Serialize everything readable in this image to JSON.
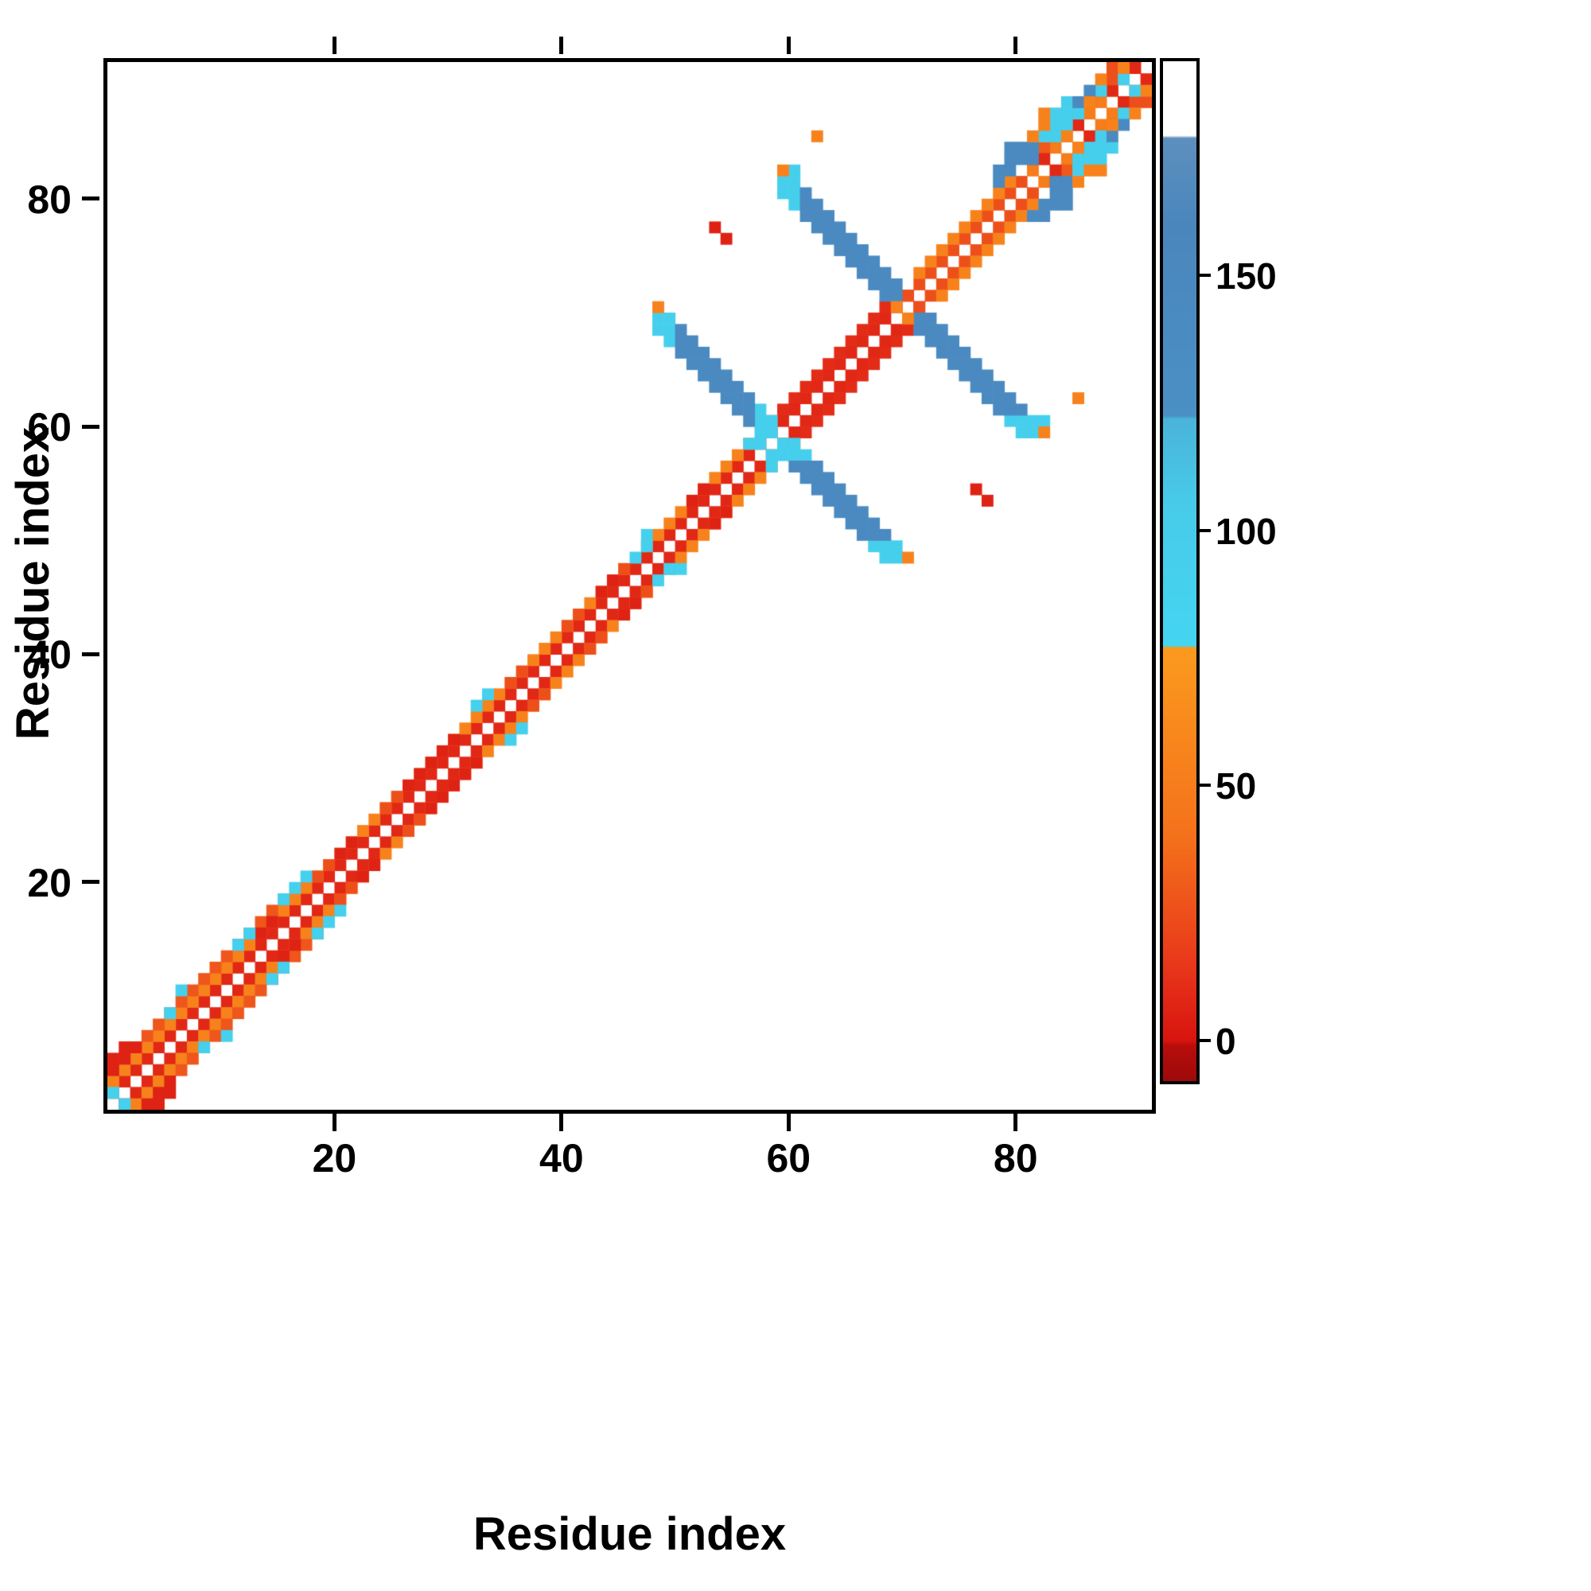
{
  "chart_data": {
    "type": "heatmap",
    "title": "",
    "xlabel": "Residue index",
    "ylabel": "Residue index",
    "x_range": [
      0,
      92
    ],
    "y_range": [
      0,
      92
    ],
    "x_ticks": [
      20,
      40,
      60,
      80
    ],
    "y_ticks": [
      20,
      40,
      60,
      80
    ],
    "grid": false,
    "symmetric": true,
    "background_value_color": "#ffffff",
    "colorbar": {
      "position": "right",
      "vmin": -8,
      "vmax": 192,
      "ticks": [
        0,
        50,
        100,
        150
      ],
      "stops": [
        [
          -8,
          "#9c0a0a"
        ],
        [
          -1,
          "#b80d0b"
        ],
        [
          0,
          "#d8140f"
        ],
        [
          16,
          "#e93a1b"
        ],
        [
          40,
          "#f4711b"
        ],
        [
          77,
          "#fb9a1d"
        ],
        [
          77.5,
          "#44d5f1"
        ],
        [
          105,
          "#47cbe9"
        ],
        [
          122,
          "#4ab3d9"
        ],
        [
          122.5,
          "#4a90c5"
        ],
        [
          160,
          "#4a86bc"
        ],
        [
          177,
          "#5d8fbe"
        ],
        [
          177.5,
          "#ffffff"
        ],
        [
          192,
          "#ffffff"
        ]
      ]
    },
    "bands": [
      [
        1,
        47,
        1,
        8
      ],
      [
        1,
        46,
        2,
        55
      ],
      [
        4,
        16,
        3,
        28
      ],
      [
        48,
        58,
        1,
        8
      ],
      [
        48,
        57,
        2,
        55
      ],
      [
        59,
        71,
        1,
        8
      ],
      [
        59,
        70,
        2,
        10
      ],
      [
        72,
        81,
        1,
        25
      ],
      [
        72,
        80,
        2,
        55
      ],
      [
        82,
        91,
        1,
        50
      ],
      [
        82,
        90,
        2,
        30
      ]
    ],
    "cells": [
      [
        1,
        4,
        6
      ],
      [
        1,
        5,
        6
      ],
      [
        2,
        5,
        6
      ],
      [
        2,
        6,
        6
      ],
      [
        3,
        6,
        6
      ],
      [
        14,
        16,
        6
      ],
      [
        15,
        17,
        6
      ],
      [
        21,
        23,
        6
      ],
      [
        22,
        24,
        6
      ],
      [
        27,
        29,
        6
      ],
      [
        28,
        30,
        6
      ],
      [
        29,
        31,
        6
      ],
      [
        30,
        32,
        6
      ],
      [
        31,
        33,
        6
      ],
      [
        44,
        46,
        6
      ],
      [
        45,
        47,
        6
      ],
      [
        52,
        54,
        6
      ],
      [
        53,
        55,
        6
      ],
      [
        54,
        78,
        6
      ],
      [
        55,
        77,
        6
      ],
      [
        83,
        84,
        8
      ],
      [
        86,
        87,
        8
      ],
      [
        89,
        90,
        8
      ],
      [
        91,
        92,
        8
      ],
      [
        19,
        21,
        25
      ],
      [
        20,
        22,
        25
      ],
      [
        25,
        27,
        25
      ],
      [
        26,
        28,
        25
      ],
      [
        36,
        38,
        25
      ],
      [
        37,
        39,
        25
      ],
      [
        41,
        43,
        25
      ],
      [
        42,
        44,
        25
      ],
      [
        46,
        48,
        25
      ],
      [
        71,
        72,
        25
      ],
      [
        89,
        91,
        25
      ],
      [
        89,
        92,
        25
      ],
      [
        1,
        2,
        90
      ],
      [
        6,
        9,
        90
      ],
      [
        7,
        11,
        90
      ],
      [
        12,
        15,
        90
      ],
      [
        13,
        16,
        90
      ],
      [
        16,
        19,
        90
      ],
      [
        17,
        20,
        90
      ],
      [
        18,
        21,
        90
      ],
      [
        33,
        36,
        90
      ],
      [
        34,
        37,
        90
      ],
      [
        47,
        49,
        90
      ],
      [
        48,
        50,
        90
      ],
      [
        48,
        51,
        90
      ],
      [
        49,
        69,
        95
      ],
      [
        49,
        70,
        95
      ],
      [
        50,
        68,
        95
      ],
      [
        50,
        69,
        95
      ],
      [
        50,
        70,
        95
      ],
      [
        57,
        59,
        95
      ],
      [
        58,
        59,
        95
      ],
      [
        58,
        60,
        95
      ],
      [
        58,
        61,
        95
      ],
      [
        58,
        62,
        95
      ],
      [
        59,
        60,
        95
      ],
      [
        59,
        61,
        95
      ],
      [
        60,
        81,
        95
      ],
      [
        60,
        82,
        95
      ],
      [
        61,
        80,
        95
      ],
      [
        61,
        81,
        95
      ],
      [
        61,
        82,
        95
      ],
      [
        61,
        83,
        95
      ],
      [
        83,
        86,
        95
      ],
      [
        84,
        86,
        95
      ],
      [
        84,
        87,
        95
      ],
      [
        85,
        87,
        95
      ],
      [
        85,
        88,
        95
      ],
      [
        86,
        88,
        95
      ],
      [
        88,
        90,
        95
      ],
      [
        90,
        91,
        95
      ],
      [
        84,
        88,
        95
      ],
      [
        85,
        89,
        95
      ],
      [
        51,
        67,
        145
      ],
      [
        51,
        68,
        145
      ],
      [
        51,
        69,
        145
      ],
      [
        52,
        66,
        145
      ],
      [
        52,
        67,
        145
      ],
      [
        52,
        68,
        145
      ],
      [
        53,
        65,
        145
      ],
      [
        53,
        66,
        145
      ],
      [
        53,
        67,
        145
      ],
      [
        54,
        64,
        145
      ],
      [
        54,
        65,
        145
      ],
      [
        54,
        66,
        145
      ],
      [
        55,
        63,
        145
      ],
      [
        55,
        64,
        145
      ],
      [
        55,
        65,
        145
      ],
      [
        56,
        62,
        145
      ],
      [
        56,
        63,
        145
      ],
      [
        56,
        64,
        145
      ],
      [
        57,
        61,
        145
      ],
      [
        57,
        62,
        145
      ],
      [
        57,
        63,
        145
      ],
      [
        62,
        79,
        145
      ],
      [
        62,
        80,
        145
      ],
      [
        62,
        81,
        145
      ],
      [
        63,
        78,
        145
      ],
      [
        63,
        79,
        145
      ],
      [
        63,
        80,
        145
      ],
      [
        64,
        77,
        145
      ],
      [
        64,
        78,
        145
      ],
      [
        64,
        79,
        145
      ],
      [
        65,
        76,
        145
      ],
      [
        65,
        77,
        145
      ],
      [
        65,
        78,
        145
      ],
      [
        66,
        75,
        145
      ],
      [
        66,
        76,
        145
      ],
      [
        66,
        77,
        145
      ],
      [
        67,
        74,
        145
      ],
      [
        67,
        75,
        145
      ],
      [
        67,
        76,
        145
      ],
      [
        68,
        73,
        145
      ],
      [
        68,
        74,
        145
      ],
      [
        68,
        75,
        145
      ],
      [
        69,
        72,
        145
      ],
      [
        69,
        73,
        145
      ],
      [
        69,
        74,
        145
      ],
      [
        70,
        72,
        145
      ],
      [
        70,
        73,
        145
      ],
      [
        79,
        82,
        145
      ],
      [
        79,
        83,
        145
      ],
      [
        80,
        83,
        145
      ],
      [
        80,
        84,
        145
      ],
      [
        80,
        85,
        145
      ],
      [
        81,
        84,
        145
      ],
      [
        81,
        85,
        145
      ],
      [
        82,
        84,
        145
      ],
      [
        82,
        85,
        145
      ],
      [
        86,
        89,
        145
      ],
      [
        87,
        90,
        145
      ],
      [
        49,
        71,
        55
      ],
      [
        60,
        83,
        55
      ],
      [
        63,
        86,
        55
      ],
      [
        70,
        71,
        55
      ],
      [
        82,
        86,
        55
      ],
      [
        85,
        86,
        55
      ],
      [
        83,
        88,
        55
      ],
      [
        87,
        89,
        55
      ],
      [
        88,
        91,
        55
      ],
      [
        90,
        92,
        55
      ],
      [
        83,
        87,
        55
      ]
    ]
  }
}
